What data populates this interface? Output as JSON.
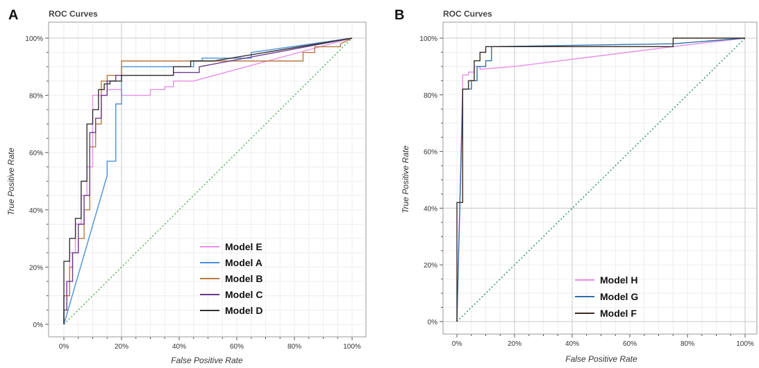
{
  "chart_data": [
    {
      "type": "line",
      "panel_letter": "A",
      "title": "ROC Curves",
      "xlabel": "False Positive Rate",
      "ylabel": "True Positive Rate",
      "xlim": [
        0,
        100
      ],
      "ylim": [
        0,
        100
      ],
      "xticks": [
        0,
        20,
        40,
        60,
        80,
        100
      ],
      "yticks": [
        0,
        20,
        40,
        60,
        80,
        100
      ],
      "x_tick_labels": [
        "0%",
        "20%",
        "40%",
        "60%",
        "80%",
        "100%"
      ],
      "y_tick_labels": [
        "0%",
        "20%",
        "40%",
        "60%",
        "80%",
        "100%"
      ],
      "grid": true,
      "legend_position": "bottom-right",
      "diagonal": {
        "x": [
          0,
          100
        ],
        "y": [
          0,
          100
        ],
        "color": "#5fb36a"
      },
      "series": [
        {
          "name": "Model E",
          "color": "#e88ee8",
          "x": [
            0,
            0,
            2,
            2,
            4,
            4,
            6,
            6,
            8,
            8,
            10,
            10,
            15,
            15,
            20,
            20,
            30,
            30,
            35,
            35,
            38,
            38,
            45,
            100
          ],
          "y": [
            0,
            10,
            10,
            25,
            25,
            35,
            35,
            45,
            45,
            55,
            55,
            80,
            80,
            82,
            82,
            80,
            80,
            82,
            82,
            83,
            83,
            85,
            85,
            100
          ]
        },
        {
          "name": "Model A",
          "color": "#4a90d9",
          "x": [
            0,
            15,
            15,
            18,
            18,
            20,
            20,
            45,
            45,
            48,
            48,
            65,
            65,
            100
          ],
          "y": [
            0,
            52,
            57,
            57,
            77,
            77,
            90,
            90,
            92,
            92,
            93,
            93,
            95,
            100
          ]
        },
        {
          "name": "Model B",
          "color": "#b87840",
          "x": [
            0,
            0,
            2,
            2,
            3,
            3,
            5,
            5,
            7,
            7,
            9,
            9,
            11,
            11,
            13,
            13,
            15,
            15,
            20,
            20,
            80,
            80,
            83,
            83,
            87,
            87,
            96,
            96,
            100
          ],
          "y": [
            0,
            10,
            10,
            20,
            20,
            25,
            25,
            30,
            30,
            40,
            40,
            62,
            62,
            70,
            70,
            85,
            85,
            87,
            87,
            92,
            92,
            92,
            92,
            95,
            95,
            97,
            97,
            98,
            100
          ]
        },
        {
          "name": "Model C",
          "color": "#6b3a8e",
          "x": [
            0,
            0,
            1,
            1,
            3,
            3,
            5,
            5,
            7,
            7,
            9,
            9,
            11,
            11,
            13,
            13,
            15,
            15,
            18,
            18,
            38,
            38,
            47,
            47,
            100
          ],
          "y": [
            0,
            5,
            5,
            15,
            15,
            25,
            25,
            35,
            35,
            45,
            45,
            67,
            67,
            72,
            72,
            80,
            80,
            85,
            85,
            87,
            87,
            88,
            88,
            90,
            100
          ]
        },
        {
          "name": "Model D",
          "color": "#333333",
          "x": [
            0,
            0,
            2,
            2,
            4,
            4,
            6,
            6,
            8,
            8,
            10,
            10,
            12,
            12,
            14,
            14,
            16,
            16,
            20,
            20,
            38,
            38,
            44,
            44,
            52,
            52,
            100
          ],
          "y": [
            0,
            22,
            22,
            30,
            30,
            37,
            37,
            50,
            50,
            70,
            70,
            75,
            75,
            82,
            82,
            84,
            84,
            85,
            85,
            87,
            87,
            90,
            90,
            92,
            92,
            92,
            100
          ]
        }
      ]
    },
    {
      "type": "line",
      "panel_letter": "B",
      "title": "ROC Curves",
      "xlabel": "False Positive Rate",
      "ylabel": "True Positive Rate",
      "xlim": [
        0,
        100
      ],
      "ylim": [
        0,
        100
      ],
      "xticks": [
        0,
        20,
        40,
        60,
        80,
        100
      ],
      "yticks": [
        0,
        20,
        40,
        60,
        80,
        100
      ],
      "x_tick_labels": [
        "0%",
        "20%",
        "40%",
        "60%",
        "80%",
        "100%"
      ],
      "y_tick_labels": [
        "0%",
        "20%",
        "40%",
        "60%",
        "80%",
        "100%"
      ],
      "grid": true,
      "legend_position": "bottom-right",
      "diagonal": {
        "x": [
          0,
          100
        ],
        "y": [
          0,
          100
        ],
        "color": "#3a9a7a"
      },
      "series": [
        {
          "name": "Model H",
          "color": "#e88ee8",
          "x": [
            0,
            2,
            2,
            4,
            4,
            6,
            6,
            8,
            8,
            20,
            75,
            100
          ],
          "y": [
            0,
            85,
            87,
            87,
            88,
            88,
            90,
            90,
            89,
            90,
            97,
            100
          ]
        },
        {
          "name": "Model G",
          "color": "#2e6fa8",
          "x": [
            0,
            2,
            2,
            5,
            5,
            7,
            7,
            10,
            10,
            12,
            12,
            75,
            100
          ],
          "y": [
            0,
            80,
            82,
            82,
            85,
            85,
            90,
            90,
            92,
            92,
            97,
            98,
            100
          ]
        },
        {
          "name": "Model F",
          "color": "#3a2a22",
          "x": [
            0,
            0,
            2,
            2,
            4,
            4,
            6,
            6,
            8,
            8,
            10,
            10,
            12,
            12,
            75,
            75,
            100
          ],
          "y": [
            0,
            42,
            42,
            82,
            82,
            85,
            85,
            92,
            92,
            95,
            95,
            97,
            97,
            97,
            97,
            100,
            100
          ]
        }
      ]
    }
  ]
}
